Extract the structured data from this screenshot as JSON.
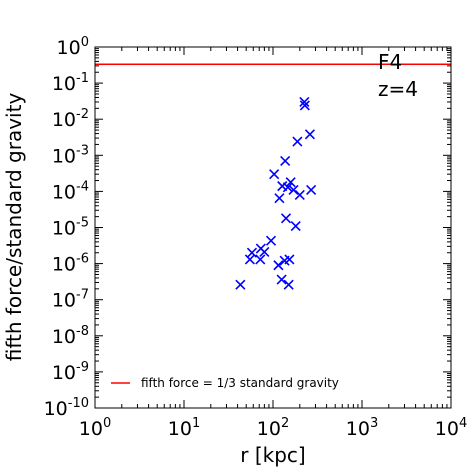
{
  "chart_data": {
    "type": "scatter",
    "title": "",
    "xlabel": "r [kpc]",
    "ylabel": "fifth force/standard gravity",
    "xscale": "log",
    "yscale": "log",
    "xlim": [
      1,
      10000
    ],
    "ylim": [
      1e-10,
      1
    ],
    "xticks": [
      {
        "base": "10",
        "exp": "0",
        "value": 1
      },
      {
        "base": "10",
        "exp": "1",
        "value": 10
      },
      {
        "base": "10",
        "exp": "2",
        "value": 100
      },
      {
        "base": "10",
        "exp": "3",
        "value": 1000
      },
      {
        "base": "10",
        "exp": "4",
        "value": 10000
      }
    ],
    "yticks": [
      {
        "base": "10",
        "exp": "0",
        "value": 1
      },
      {
        "base": "10",
        "exp": "-1",
        "value": 0.1
      },
      {
        "base": "10",
        "exp": "-2",
        "value": 0.01
      },
      {
        "base": "10",
        "exp": "-3",
        "value": 0.001
      },
      {
        "base": "10",
        "exp": "-4",
        "value": 0.0001
      },
      {
        "base": "10",
        "exp": "-5",
        "value": 1e-05
      },
      {
        "base": "10",
        "exp": "-6",
        "value": 1e-06
      },
      {
        "base": "10",
        "exp": "-7",
        "value": 1e-07
      },
      {
        "base": "10",
        "exp": "-8",
        "value": 1e-08
      },
      {
        "base": "10",
        "exp": "-9",
        "value": 1e-09
      },
      {
        "base": "10",
        "exp": "-10",
        "value": 1e-10
      }
    ],
    "annotations": [
      "F4",
      "z=4"
    ],
    "grid": false,
    "legend_position": "lower-left",
    "series": [
      {
        "kind": "scatter",
        "marker": "x",
        "color": "#0000ff",
        "points": [
          [
            43,
            2.6e-07
          ],
          [
            55,
            1.3e-06
          ],
          [
            58,
            2e-06
          ],
          [
            72,
            1.3e-06
          ],
          [
            73,
            2.6e-06
          ],
          [
            80,
            2.1e-06
          ],
          [
            95,
            4.3e-06
          ],
          [
            103,
            0.0003
          ],
          [
            115,
            9e-07
          ],
          [
            118,
            6.5e-05
          ],
          [
            125,
            3.6e-07
          ],
          [
            127,
            0.00014
          ],
          [
            135,
            1.2e-06
          ],
          [
            137,
            0.0007
          ],
          [
            140,
            1.8e-05
          ],
          [
            147,
            0.00013
          ],
          [
            150,
            2.6e-07
          ],
          [
            153,
            1.3e-06
          ],
          [
            158,
            0.00018
          ],
          [
            170,
            0.00011
          ],
          [
            180,
            1.1e-05
          ],
          [
            188,
            0.0024
          ],
          [
            200,
            8e-05
          ],
          [
            225,
            0.03
          ],
          [
            228,
            0.024
          ],
          [
            260,
            0.0038
          ],
          [
            268,
            0.00011
          ]
        ]
      },
      {
        "kind": "hline",
        "name": "fifth force = 1/3 standard gravity",
        "color": "#ff0000",
        "y": 0.3333
      }
    ]
  }
}
